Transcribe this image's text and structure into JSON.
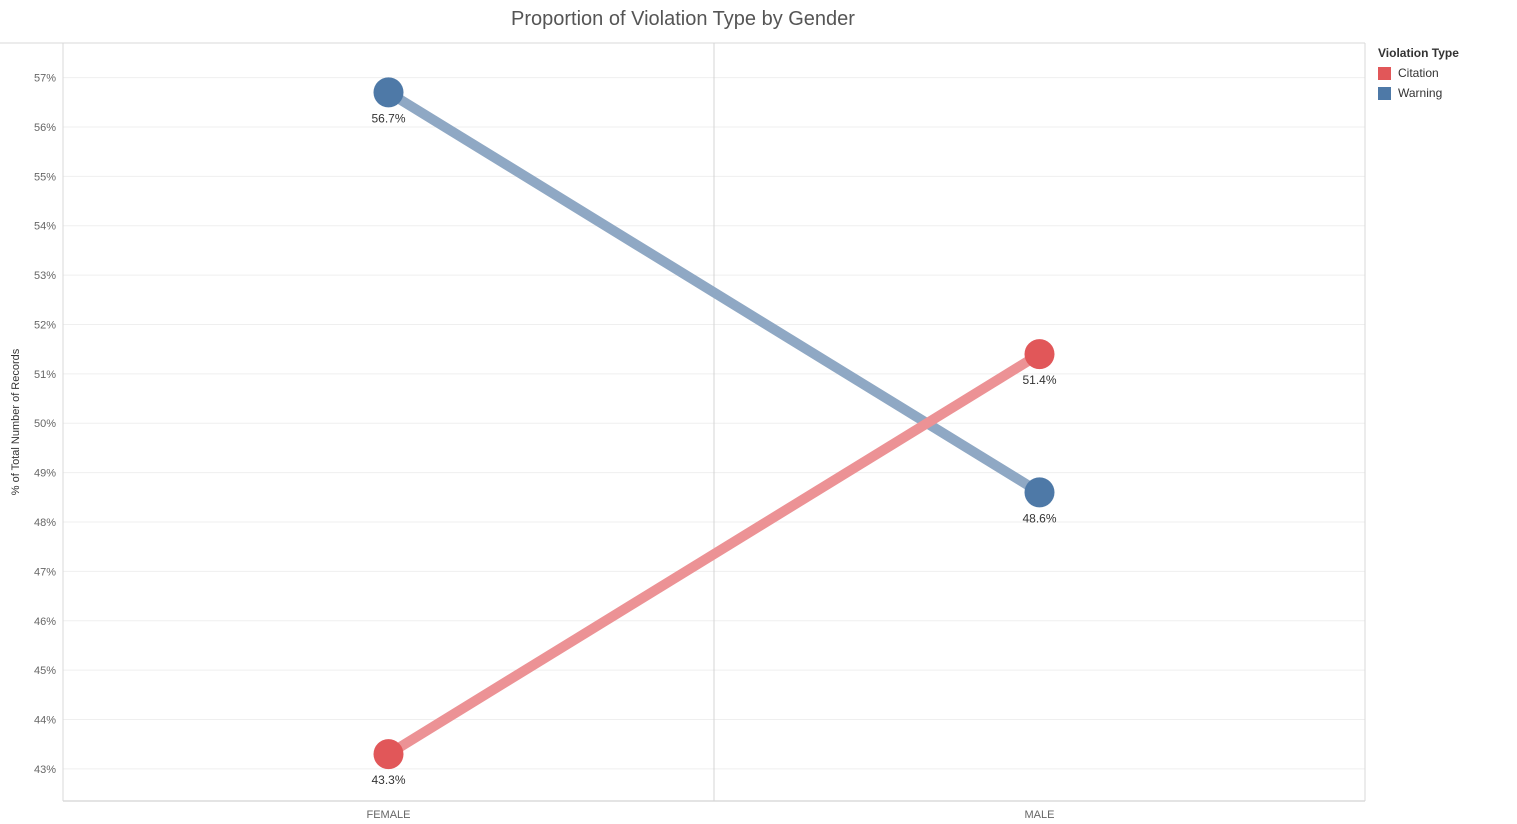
{
  "chart_data": {
    "type": "line",
    "title": "Proportion of Violation Type by Gender",
    "xlabel": "",
    "ylabel": "% of Total Number of Records",
    "categories": [
      "FEMALE",
      "MALE"
    ],
    "ylim": [
      42.35,
      57.7
    ],
    "yticks": [
      43,
      44,
      45,
      46,
      47,
      48,
      49,
      50,
      51,
      52,
      53,
      54,
      55,
      56,
      57
    ],
    "ytick_suffix": "%",
    "grid": true,
    "legend_placement": "top-right",
    "legend_title": "Violation Type",
    "legend_items": [
      {
        "name": "Citation",
        "color": "#e15759"
      },
      {
        "name": "Warning",
        "color": "#4e79a7"
      }
    ],
    "series": [
      {
        "name": "Warning",
        "color": "#4e79a7",
        "line_color": "#8fa8c4",
        "values": [
          56.7,
          48.6
        ],
        "labels": [
          "56.7%",
          "48.6%"
        ]
      },
      {
        "name": "Citation",
        "color": "#e15759",
        "line_color": "#ec9295",
        "values": [
          43.3,
          51.4
        ],
        "labels": [
          "43.3%",
          "51.4%"
        ]
      }
    ]
  }
}
